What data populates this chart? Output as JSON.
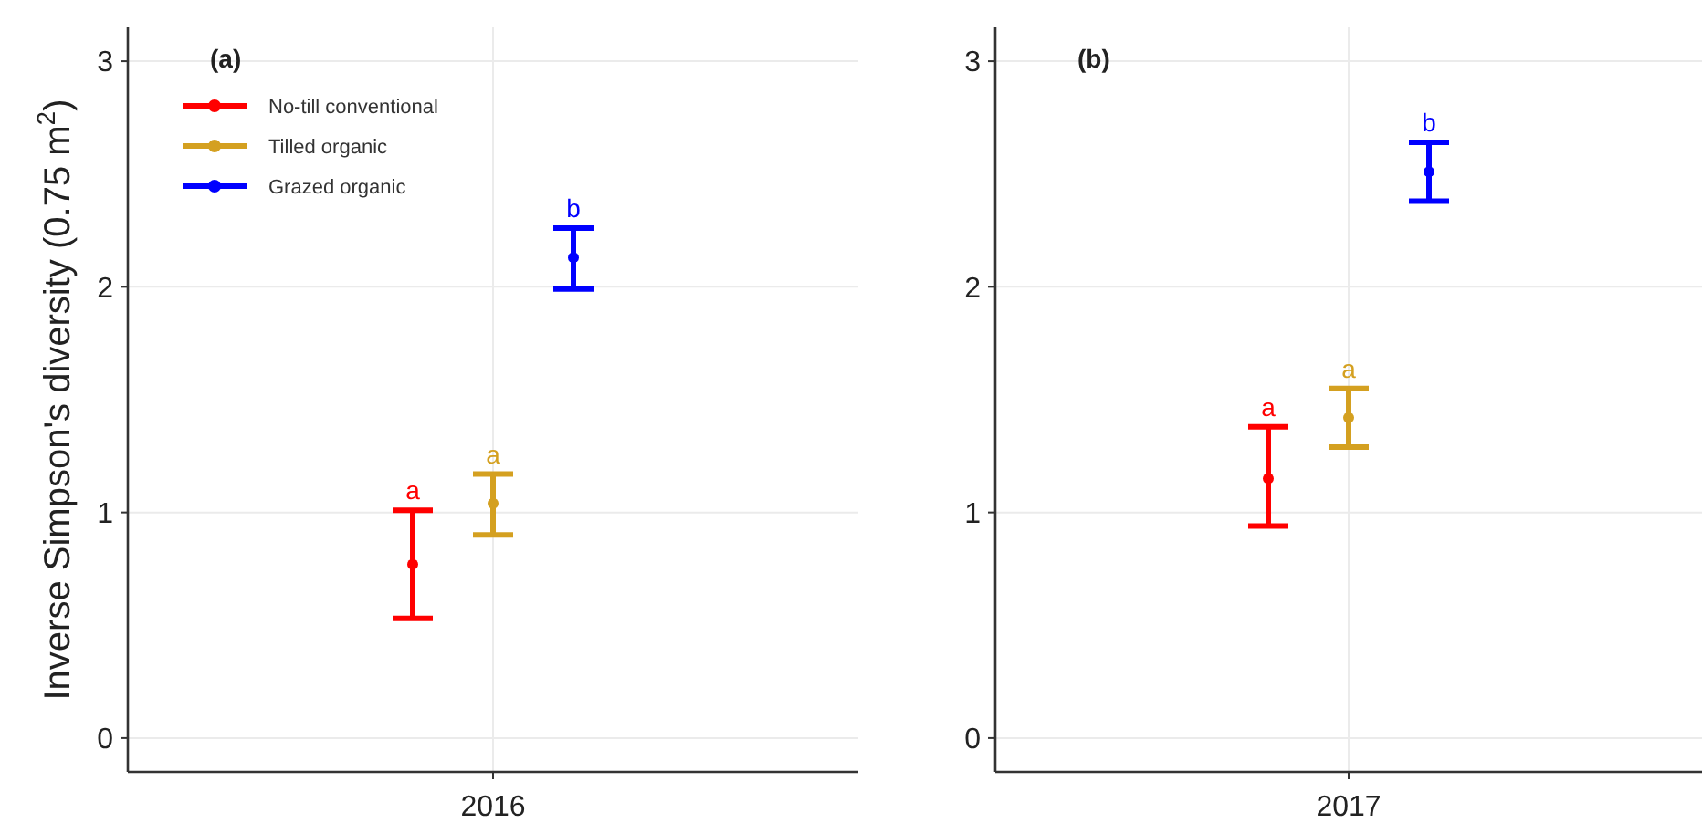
{
  "chart_data": [
    {
      "type": "scatter",
      "title": "(a)",
      "ylabel": "Inverse Simpson's diversity (0.75 m$^{2}$)",
      "categories": [
        "2016"
      ],
      "ylim": [
        -0.15,
        3.15
      ],
      "yticks": [
        0,
        1,
        2,
        3
      ],
      "grid": true,
      "legend": "top left",
      "marker": "circle",
      "series": [
        {
          "name": "No-till conventional",
          "color": "#ff0000",
          "values": [
            0.77
          ],
          "errors": [
            [
              0.53,
              1.01
            ]
          ]
        },
        {
          "name": "Tilled organic",
          "color": "#d4a020",
          "values": [
            1.04
          ],
          "errors": [
            [
              0.9,
              1.17
            ]
          ]
        },
        {
          "name": "Grazed organic",
          "color": "#0000ff",
          "values": [
            2.13
          ],
          "errors": [
            [
              1.99,
              2.26
            ]
          ]
        }
      ],
      "annotations": [
        "a",
        "a",
        "b"
      ]
    },
    {
      "type": "scatter",
      "title": "(b)",
      "categories": [
        "2017"
      ],
      "ylim": [
        -0.15,
        3.15
      ],
      "yticks": [
        0,
        1,
        2,
        3
      ],
      "grid": true,
      "legend": false,
      "marker": "circle",
      "series": [
        {
          "color": "#ff0000",
          "values": [
            1.15
          ],
          "errors": [
            [
              0.94,
              1.38
            ]
          ]
        },
        {
          "color": "#d4a020",
          "values": [
            1.42
          ],
          "errors": [
            [
              1.29,
              1.55
            ]
          ]
        },
        {
          "color": "#0000ff",
          "values": [
            2.51
          ],
          "errors": [
            [
              2.38,
              2.64
            ]
          ]
        }
      ],
      "annotations": [
        "a",
        "a",
        "b"
      ]
    }
  ]
}
